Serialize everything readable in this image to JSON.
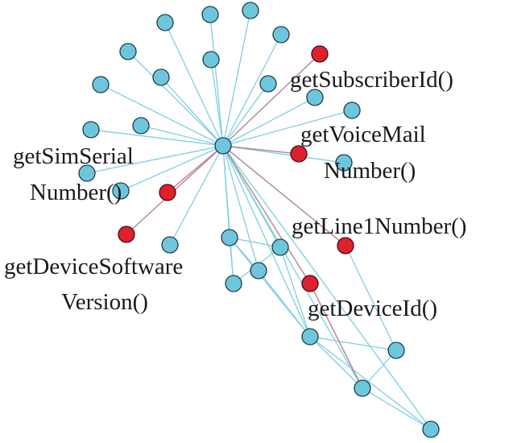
{
  "colors": {
    "background": "#ffffff",
    "api_node": "#e0202c",
    "node": "#6ec6dd",
    "edge": "#7ecfe0",
    "api_edge": "#b88a9a"
  },
  "labels": {
    "subscriber": "getSubscriberId()",
    "voicemail_1": "getVoiceMail",
    "voicemail_2": "Number()",
    "simserial_1": "getSimSerial",
    "simserial_2": "Number()",
    "line1": "getLine1Number()",
    "devsoft_1": "getDeviceSoftware",
    "devsoft_2": "Version()",
    "deviceid": "getDeviceId()"
  }
}
